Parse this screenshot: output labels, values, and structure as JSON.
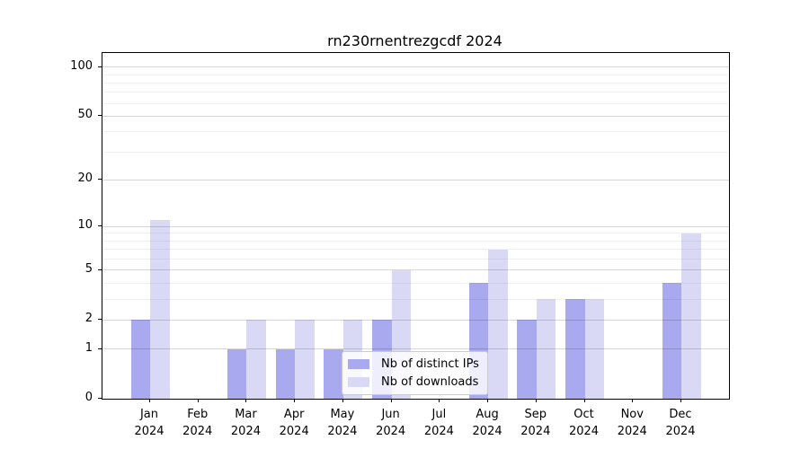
{
  "title": "rn230rnentrezgcdf 2024",
  "legend": {
    "items": [
      {
        "label": "Nb of distinct IPs",
        "color": "#a9a9f0"
      },
      {
        "label": "Nb of downloads",
        "color": "#d9d9f6"
      }
    ]
  },
  "chart_data": {
    "type": "bar",
    "title": "rn230rnentrezgcdf 2024",
    "categories": [
      "Jan",
      "Feb",
      "Mar",
      "Apr",
      "May",
      "Jun",
      "Jul",
      "Aug",
      "Sep",
      "Oct",
      "Nov",
      "Dec"
    ],
    "year_label": "2024",
    "series": [
      {
        "name": "Nb of distinct IPs",
        "color": "#a9a9f0",
        "values": [
          2,
          0,
          1,
          1,
          1,
          2,
          0,
          4,
          2,
          3,
          0,
          4
        ]
      },
      {
        "name": "Nb of downloads",
        "color": "#d9d9f6",
        "values": [
          11,
          0,
          2,
          2,
          2,
          5,
          0,
          7,
          3,
          3,
          0,
          9
        ]
      }
    ],
    "yscale": "log1p",
    "ylim": [
      0,
      122
    ],
    "yticks": [
      0,
      1,
      2,
      5,
      10,
      20,
      50,
      100
    ],
    "ytick_labels": [
      "0",
      "1",
      "2",
      "5",
      "10",
      "20",
      "50",
      "100"
    ],
    "minor_yticks": [
      3,
      4,
      6,
      7,
      8,
      9,
      30,
      40,
      60,
      70,
      80,
      90
    ],
    "grid": true,
    "grid_above_bars": true,
    "legend_position": "lower-center",
    "colors": {
      "spine": "#000000",
      "grid_major": "#d9d9d9",
      "grid_minor": "#f0f0f0"
    }
  }
}
